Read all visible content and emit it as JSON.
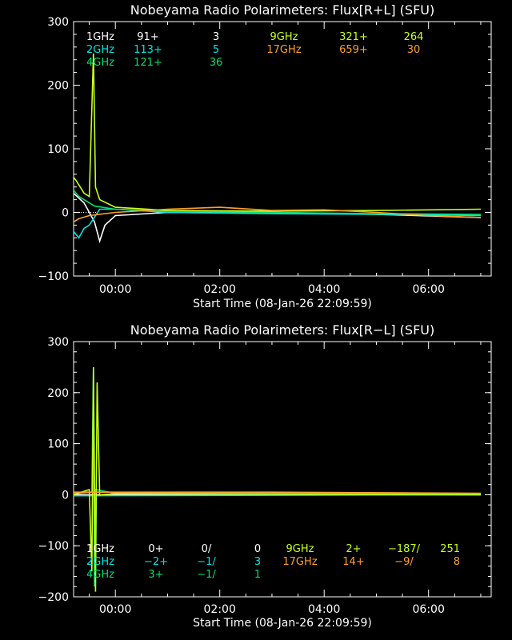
{
  "colors": {
    "bg": "#000000",
    "axis": "#ffffff",
    "f1": "#ffffff",
    "f2": "#00e5e5",
    "f4": "#00e070",
    "f9": "#c8ff1a",
    "f17": "#ffa028"
  },
  "chart_data": [
    {
      "type": "line",
      "title": "Nobeyama Radio Polarimeters: Flux[R+L] (SFU)",
      "xlabel": "Start Time (08-Jan-26 22:09:59)",
      "ylabel": "",
      "xlim_hours": [
        -0.8,
        7.2
      ],
      "x_ticks": [
        "00:00",
        "02:00",
        "04:00",
        "06:00"
      ],
      "ylim": [
        -100,
        300
      ],
      "y_ticks": [
        "-100",
        "0",
        "100",
        "200",
        "300"
      ],
      "grid": false,
      "legend": [
        {
          "freq": "1GHz",
          "offset": "91+",
          "scale": "3",
          "color": "#ffffff"
        },
        {
          "freq": "2GHz",
          "offset": "113+",
          "scale": "5",
          "color": "#00e5e5"
        },
        {
          "freq": "4GHz",
          "offset": "121+",
          "scale": "36",
          "color": "#00e070"
        },
        {
          "freq": "9GHz",
          "offset": "321+",
          "scale": "264",
          "color": "#c8ff1a"
        },
        {
          "freq": "17GHz",
          "offset": "659+",
          "scale": "30",
          "color": "#ffa028"
        }
      ],
      "series": [
        {
          "name": "1GHz",
          "color": "#ffffff",
          "x": [
            -0.8,
            -0.6,
            -0.4,
            -0.3,
            -0.2,
            0.0,
            1.0,
            3.0,
            5.0,
            7.0
          ],
          "y": [
            30,
            15,
            -15,
            -45,
            -20,
            -5,
            0,
            0,
            -3,
            -8
          ]
        },
        {
          "name": "2GHz",
          "color": "#00e5e5",
          "x": [
            -0.8,
            -0.7,
            -0.6,
            -0.5,
            -0.3,
            0.0,
            1.0,
            3.0,
            5.0,
            7.0
          ],
          "y": [
            -30,
            -40,
            -25,
            -20,
            5,
            5,
            0,
            -2,
            -3,
            -5
          ]
        },
        {
          "name": "4GHz",
          "color": "#00e070",
          "x": [
            -0.8,
            -0.7,
            -0.6,
            -0.5,
            -0.4,
            0.0,
            1.0,
            3.0,
            5.0,
            7.0
          ],
          "y": [
            35,
            25,
            20,
            15,
            10,
            5,
            2,
            0,
            -2,
            -3
          ]
        },
        {
          "name": "9GHz",
          "color": "#c8ff1a",
          "x": [
            -0.8,
            -0.75,
            -0.6,
            -0.5,
            -0.42,
            -0.38,
            -0.3,
            0.0,
            1.0,
            3.0,
            5.0,
            7.0
          ],
          "y": [
            55,
            50,
            30,
            25,
            250,
            40,
            20,
            8,
            3,
            2,
            3,
            5
          ]
        },
        {
          "name": "17GHz",
          "color": "#ffa028",
          "x": [
            -0.8,
            -0.7,
            -0.5,
            0.0,
            1.0,
            2.0,
            3.0,
            4.0,
            5.0,
            6.0,
            7.0
          ],
          "y": [
            -15,
            -10,
            -5,
            0,
            5,
            8,
            3,
            4,
            0,
            -5,
            -8
          ]
        }
      ]
    },
    {
      "type": "line",
      "title": "Nobeyama Radio Polarimeters: Flux[R−L] (SFU)",
      "xlabel": "Start Time (08-Jan-26 22:09:59)",
      "ylabel": "",
      "xlim_hours": [
        -0.8,
        7.2
      ],
      "x_ticks": [
        "00:00",
        "02:00",
        "04:00",
        "06:00"
      ],
      "ylim": [
        -200,
        300
      ],
      "y_ticks": [
        "-200",
        "-100",
        "0",
        "100",
        "200",
        "300"
      ],
      "grid": false,
      "legend": [
        {
          "freq": "1GHz",
          "offset": "0+",
          "scale": "0/",
          "extra": "0",
          "color": "#ffffff"
        },
        {
          "freq": "2GHz",
          "offset": "−2+",
          "scale": "−1/",
          "extra": "3",
          "color": "#00e5e5"
        },
        {
          "freq": "4GHz",
          "offset": "3+",
          "scale": "−1/",
          "extra": "1",
          "color": "#00e070"
        },
        {
          "freq": "9GHz",
          "offset": "2+",
          "scale": "−187/",
          "extra": "251",
          "color": "#c8ff1a"
        },
        {
          "freq": "17GHz",
          "offset": "14+",
          "scale": "−9/",
          "extra": "8",
          "color": "#ffa028"
        }
      ],
      "series": [
        {
          "name": "1GHz",
          "color": "#ffffff",
          "x": [
            -0.8,
            7.0
          ],
          "y": [
            0,
            0
          ]
        },
        {
          "name": "2GHz",
          "color": "#00e5e5",
          "x": [
            -0.8,
            7.0
          ],
          "y": [
            -2,
            0
          ]
        },
        {
          "name": "4GHz",
          "color": "#00e070",
          "x": [
            -0.8,
            -0.45,
            -0.42,
            -0.4,
            -0.38,
            0.0,
            7.0
          ],
          "y": [
            2,
            5,
            250,
            -180,
            10,
            3,
            2
          ]
        },
        {
          "name": "9GHz",
          "color": "#c8ff1a",
          "x": [
            -0.8,
            -0.5,
            -0.45,
            -0.42,
            -0.38,
            -0.35,
            -0.3,
            0.0,
            7.0
          ],
          "y": [
            0,
            10,
            -150,
            250,
            -190,
            220,
            0,
            2,
            0
          ]
        },
        {
          "name": "17GHz",
          "color": "#ffa028",
          "x": [
            -0.8,
            0.0,
            3.0,
            7.0
          ],
          "y": [
            5,
            5,
            5,
            3
          ]
        }
      ]
    }
  ]
}
